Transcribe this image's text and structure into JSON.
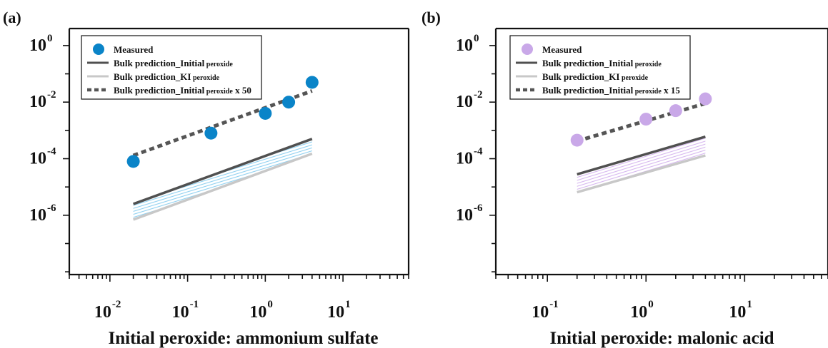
{
  "chart_data": [
    {
      "type": "line",
      "panel_label": "(a)",
      "xlabel": "Initial peroxide: ammonium sulfate",
      "x_scale": "log",
      "y_scale": "log",
      "xlim": [
        0.003,
        70
      ],
      "ylim": [
        8e-09,
        4
      ],
      "x_ticks": [
        0.01,
        0.1,
        1,
        10
      ],
      "x_tick_labels": [
        {
          "base": "10",
          "exp": "-2"
        },
        {
          "base": "10",
          "exp": "-1"
        },
        {
          "base": "10",
          "exp": "0"
        },
        {
          "base": "10",
          "exp": "1"
        }
      ],
      "y_ticks": [
        1e-06,
        0.0001,
        0.01,
        1
      ],
      "y_tick_labels": [
        {
          "base": "10",
          "exp": "-6"
        },
        {
          "base": "10",
          "exp": "-4"
        },
        {
          "base": "10",
          "exp": "-2"
        },
        {
          "base": "10",
          "exp": "0"
        }
      ],
      "legend_position": "top-left",
      "legend": [
        {
          "kind": "marker",
          "text": "Measured",
          "sub": "",
          "suffix": ""
        },
        {
          "kind": "line-dark",
          "text": "Bulk prediction_Initial",
          "sub": "peroxide",
          "suffix": ""
        },
        {
          "kind": "line-light",
          "text": "Bulk prediction_KI",
          "sub": "peroxide",
          "suffix": ""
        },
        {
          "kind": "line-dashed",
          "text": "Bulk prediction_Initial",
          "sub": "peroxide",
          "suffix": " x 50"
        }
      ],
      "marker_color": "#0a84c8",
      "hatch_color": "#8fd0f0",
      "series": [
        {
          "name": "Measured",
          "style": "marker",
          "x": [
            0.02,
            0.2,
            1,
            2,
            4
          ],
          "y": [
            8e-05,
            0.0008,
            0.004,
            0.01,
            0.05
          ]
        },
        {
          "name": "Bulk prediction_Initial peroxide",
          "style": "line-dark",
          "x": [
            0.02,
            4
          ],
          "y": [
            2.5e-06,
            0.0005
          ]
        },
        {
          "name": "Bulk prediction_KI peroxide",
          "style": "line-light",
          "x": [
            0.02,
            4
          ],
          "y": [
            7e-07,
            0.00015
          ]
        },
        {
          "name": "Bulk prediction_Initial peroxide x 50",
          "style": "line-dashed",
          "x": [
            0.02,
            4
          ],
          "y": [
            0.00013,
            0.025
          ]
        }
      ]
    },
    {
      "type": "line",
      "panel_label": "(b)",
      "xlabel": "Initial peroxide: malonic acid",
      "x_scale": "log",
      "y_scale": "log",
      "xlim": [
        0.03,
        70
      ],
      "ylim": [
        8e-09,
        4
      ],
      "x_ticks": [
        0.1,
        1,
        10
      ],
      "x_tick_labels": [
        {
          "base": "10",
          "exp": "-1"
        },
        {
          "base": "10",
          "exp": "0"
        },
        {
          "base": "10",
          "exp": "1"
        }
      ],
      "y_ticks": [
        1e-06,
        0.0001,
        0.01,
        1
      ],
      "y_tick_labels": [
        {
          "base": "10",
          "exp": "-6"
        },
        {
          "base": "10",
          "exp": "-4"
        },
        {
          "base": "10",
          "exp": "-2"
        },
        {
          "base": "10",
          "exp": "0"
        }
      ],
      "legend_position": "top-left",
      "legend": [
        {
          "kind": "marker",
          "text": "Measured",
          "sub": "",
          "suffix": ""
        },
        {
          "kind": "line-dark",
          "text": "Bulk prediction_Initial",
          "sub": "peroxide",
          "suffix": ""
        },
        {
          "kind": "line-light",
          "text": "Bulk prediction_KI",
          "sub": "peroxide",
          "suffix": ""
        },
        {
          "kind": "line-dashed",
          "text": "Bulk prediction_Initial",
          "sub": "peroxide",
          "suffix": " x 15"
        }
      ],
      "marker_color": "#c9a8e8",
      "hatch_color": "#d6b7ee",
      "series": [
        {
          "name": "Measured",
          "style": "marker",
          "x": [
            0.2,
            1,
            2,
            4
          ],
          "y": [
            0.00045,
            0.0025,
            0.005,
            0.013
          ]
        },
        {
          "name": "Bulk prediction_Initial peroxide",
          "style": "line-dark",
          "x": [
            0.2,
            4
          ],
          "y": [
            2.8e-05,
            0.0006
          ]
        },
        {
          "name": "Bulk prediction_KI peroxide",
          "style": "line-light",
          "x": [
            0.2,
            4
          ],
          "y": [
            6.5e-06,
            0.00013
          ]
        },
        {
          "name": "Bulk prediction_Initial peroxide x 15",
          "style": "line-dashed",
          "x": [
            0.2,
            4
          ],
          "y": [
            0.00042,
            0.009
          ]
        }
      ]
    }
  ]
}
